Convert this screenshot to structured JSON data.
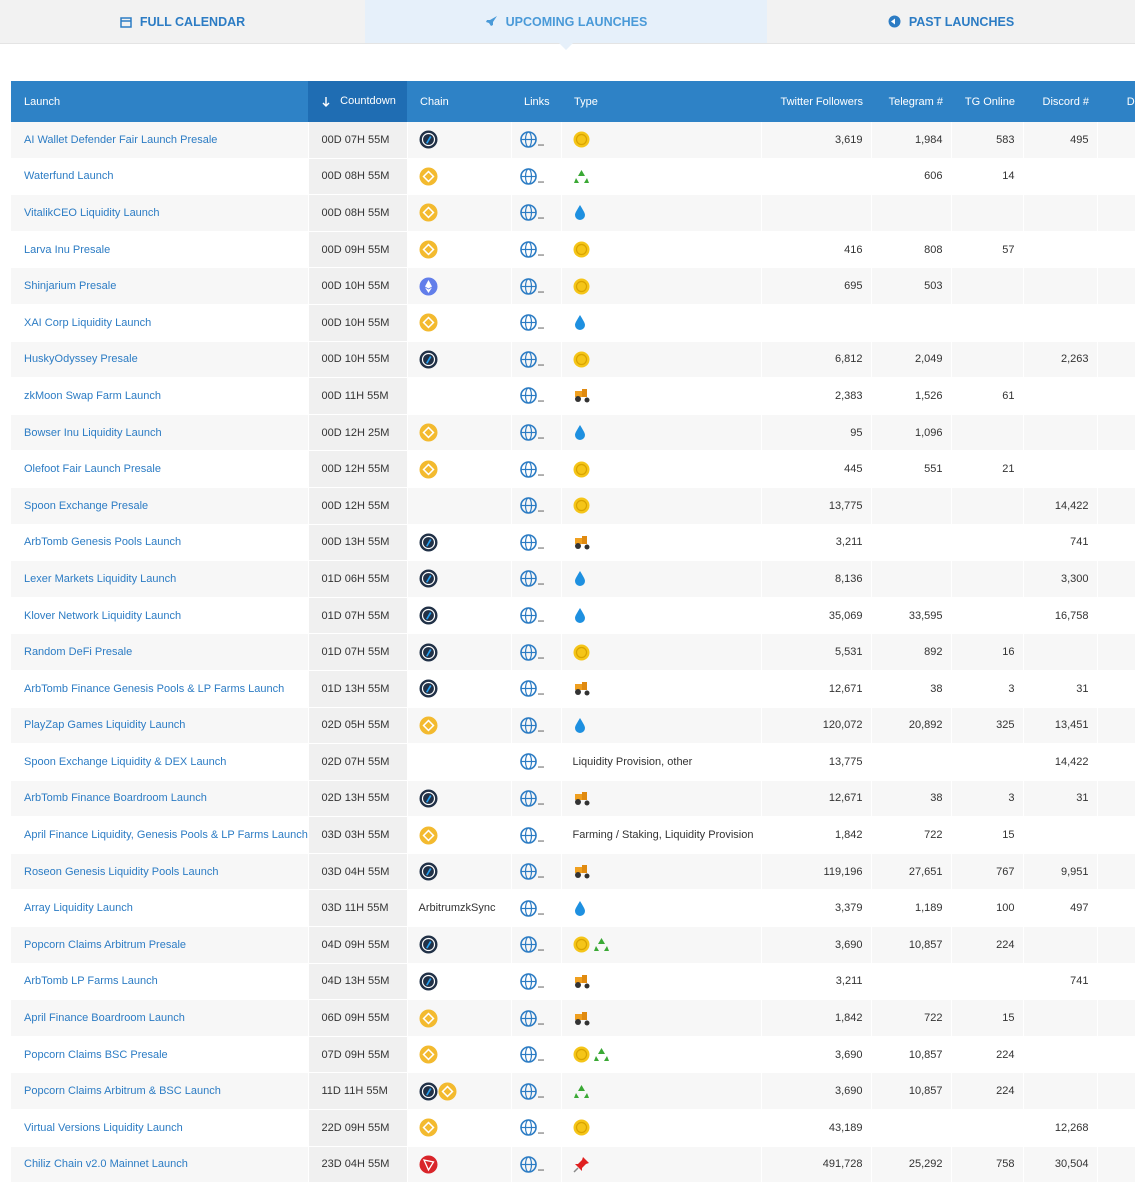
{
  "tabs": [
    "FULL CALENDAR",
    "UPCOMING LAUNCHES",
    "PAST LAUNCHES"
  ],
  "table": {
    "headers": [
      "Launch",
      "Countdown",
      "Chain",
      "Links",
      "Type",
      "Twitter Followers",
      "Telegram #",
      "TG Online",
      "Discord #",
      "Disc Online"
    ],
    "rows": [
      {
        "launch": "AI Wallet Defender Fair Launch Presale",
        "countdown": "00D 07H 55M",
        "twitter": "3,619",
        "telegram": "1,984",
        "tg_online": "583",
        "discord": "495"
      },
      {
        "launch": "Waterfund Launch",
        "countdown": "00D 08H 55M",
        "telegram": "606",
        "tg_online": "14"
      },
      {
        "launch": "VitalikCEO Liquidity Launch",
        "countdown": "00D 08H 55M"
      },
      {
        "launch": "Larva Inu Presale",
        "countdown": "00D 09H 55M",
        "twitter": "416",
        "telegram": "808",
        "tg_online": "57"
      },
      {
        "launch": "Shinjarium Presale",
        "countdown": "00D 10H 55M",
        "twitter": "695",
        "telegram": "503"
      },
      {
        "launch": "XAI Corp Liquidity Launch",
        "countdown": "00D 10H 55M"
      },
      {
        "launch": "HuskyOdyssey Presale",
        "countdown": "00D 10H 55M",
        "twitter": "6,812",
        "telegram": "2,049",
        "discord": "2,263"
      },
      {
        "launch": "zkMoon Swap Farm Launch",
        "countdown": "00D 11H 55M",
        "twitter": "2,383",
        "telegram": "1,526",
        "tg_online": "61"
      },
      {
        "launch": "Bowser Inu Liquidity Launch",
        "countdown": "00D 12H 25M",
        "twitter": "95",
        "telegram": "1,096"
      },
      {
        "launch": "Olefoot Fair Launch Presale",
        "countdown": "00D 12H 55M",
        "twitter": "445",
        "telegram": "551",
        "tg_online": "21"
      },
      {
        "launch": "Spoon Exchange Presale",
        "countdown": "00D 12H 55M",
        "twitter": "13,775",
        "discord": "14,422"
      },
      {
        "launch": "ArbTomb Genesis Pools Launch",
        "countdown": "00D 13H 55M",
        "twitter": "3,211",
        "discord": "741"
      },
      {
        "launch": "Lexer Markets Liquidity Launch",
        "countdown": "01D 06H 55M",
        "twitter": "8,136",
        "discord": "3,300"
      },
      {
        "launch": "Klover Network Liquidity Launch",
        "countdown": "01D 07H 55M",
        "twitter": "35,069",
        "telegram": "33,595",
        "discord": "16,758"
      },
      {
        "launch": "Random DeFi Presale",
        "countdown": "01D 07H 55M",
        "twitter": "5,531",
        "telegram": "892",
        "tg_online": "16"
      },
      {
        "launch": "ArbTomb Finance Genesis Pools & LP Farms Launch",
        "countdown": "01D 13H 55M",
        "twitter": "12,671",
        "telegram": "38",
        "tg_online": "3",
        "discord": "31"
      },
      {
        "launch": "PlayZap Games Liquidity Launch",
        "countdown": "02D 05H 55M",
        "twitter": "120,072",
        "telegram": "20,892",
        "tg_online": "325",
        "discord": "13,451"
      },
      {
        "launch": "Spoon Exchange Liquidity & DEX Launch",
        "countdown": "02D 07H 55M",
        "type": "Liquidity Provision, other",
        "twitter": "13,775",
        "discord": "14,422"
      },
      {
        "launch": "ArbTomb Finance Boardroom Launch",
        "countdown": "02D 13H 55M",
        "twitter": "12,671",
        "telegram": "38",
        "tg_online": "3",
        "discord": "31"
      },
      {
        "launch": "April Finance Liquidity, Genesis Pools & LP Farms Launch",
        "countdown": "03D 03H 55M",
        "type": "Farming / Staking, Liquidity Provision",
        "twitter": "1,842",
        "telegram": "722",
        "tg_online": "15"
      },
      {
        "launch": "Roseon Genesis Liquidity Pools Launch",
        "countdown": "03D 04H 55M",
        "twitter": "119,196",
        "telegram": "27,651",
        "tg_online": "767",
        "discord": "9,951"
      },
      {
        "launch": "Array Liquidity Launch",
        "countdown": "03D 11H 55M",
        "chain": "ArbitrumzkSync",
        "twitter": "3,379",
        "telegram": "1,189",
        "tg_online": "100",
        "discord": "497"
      },
      {
        "launch": "Popcorn Claims Arbitrum Presale",
        "countdown": "04D 09H 55M",
        "twitter": "3,690",
        "telegram": "10,857",
        "tg_online": "224"
      },
      {
        "launch": "ArbTomb LP Farms Launch",
        "countdown": "04D 13H 55M",
        "twitter": "3,211",
        "discord": "741"
      },
      {
        "launch": "April Finance Boardroom Launch",
        "countdown": "06D 09H 55M",
        "twitter": "1,842",
        "telegram": "722",
        "tg_online": "15"
      },
      {
        "launch": "Popcorn Claims BSC Presale",
        "countdown": "07D 09H 55M",
        "twitter": "3,690",
        "telegram": "10,857",
        "tg_online": "224"
      },
      {
        "launch": "Popcorn Claims Arbitrum & BSC Launch",
        "countdown": "11D 11H 55M",
        "twitter": "3,690",
        "telegram": "10,857",
        "tg_online": "224"
      },
      {
        "launch": "Virtual Versions Liquidity Launch",
        "countdown": "22D 09H 55M",
        "twitter": "43,189",
        "discord": "12,268"
      },
      {
        "launch": "Chiliz Chain v2.0 Mainnet Launch",
        "countdown": "23D 04H 55M",
        "twitter": "491,728",
        "telegram": "25,292",
        "tg_online": "758",
        "discord": "30,504"
      }
    ]
  }
}
